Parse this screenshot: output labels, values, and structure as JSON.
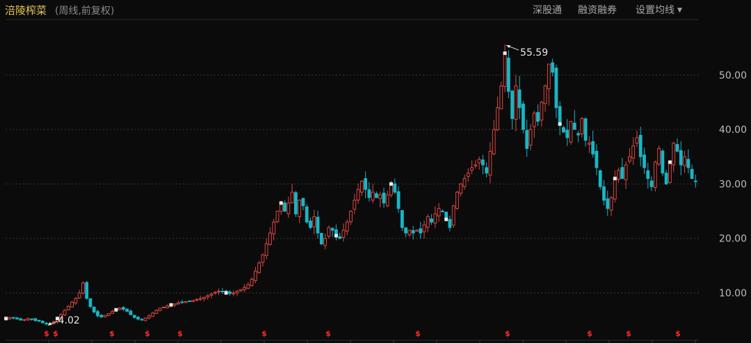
{
  "header": {
    "stock_name": "涪陵榨菜",
    "subtitle": "(周线,前复权)",
    "buttons": [
      "深股通",
      "融资融券",
      "设置均线"
    ]
  },
  "colors": {
    "up": "#e0473f",
    "down": "#18b6c4",
    "dividend": "#ff2a2a",
    "background": "#0b0b0c"
  },
  "chart_data": {
    "type": "candlestick",
    "period": "weekly",
    "adjustment": "forward-adjusted",
    "ylim": [
      4,
      57
    ],
    "y_ticks": [
      {
        "value": 10,
        "label": "10.00"
      },
      {
        "value": 20,
        "label": "20.00"
      },
      {
        "value": 30,
        "label": "30.00"
      },
      {
        "value": 40,
        "label": "40.00"
      },
      {
        "value": 50,
        "label": "50.00"
      }
    ],
    "annotations": [
      {
        "label": "55.59",
        "value": 55.59,
        "type": "high"
      },
      {
        "label": "4.02",
        "value": 4.02,
        "type": "low"
      }
    ],
    "dividend_marker_symbol": "$",
    "close_series": [
      5.3,
      5.5,
      5.4,
      5.2,
      5.0,
      5.1,
      5.3,
      5.2,
      4.9,
      4.8,
      4.5,
      4.3,
      4.4,
      4.7,
      5.3,
      6.0,
      6.8,
      7.5,
      8.3,
      9.0,
      10.0,
      11.8,
      9.0,
      7.5,
      6.5,
      5.8,
      5.6,
      5.9,
      6.2,
      6.6,
      6.9,
      7.2,
      7.0,
      6.6,
      6.0,
      5.5,
      5.2,
      5.0,
      5.4,
      5.8,
      6.3,
      6.8,
      7.2,
      7.4,
      7.6,
      7.8,
      8.0,
      8.2,
      8.3,
      8.4,
      8.5,
      8.6,
      8.8,
      9.0,
      9.2,
      9.5,
      9.8,
      10.1,
      10.3,
      10.2,
      10.0,
      9.9,
      10.0,
      10.3,
      10.6,
      11.0,
      11.5,
      12.5,
      14.0,
      15.5,
      17.0,
      19.0,
      21.0,
      23.0,
      25.0,
      26.5,
      25.0,
      26.5,
      28.5,
      24.5,
      27.0,
      26.0,
      23.0,
      22.0,
      24.0,
      21.0,
      19.0,
      20.0,
      22.0,
      21.5,
      20.5,
      20.0,
      21.5,
      23.0,
      25.0,
      27.0,
      29.0,
      30.5,
      29.0,
      27.5,
      28.5,
      27.5,
      28.0,
      26.5,
      28.0,
      30.0,
      28.5,
      25.5,
      22.0,
      21.0,
      21.5,
      21.0,
      21.5,
      21.0,
      22.5,
      24.0,
      23.0,
      24.5,
      25.5,
      25.0,
      23.5,
      22.0,
      26.0,
      28.5,
      30.0,
      31.0,
      32.0,
      33.0,
      33.5,
      34.5,
      33.5,
      32.0,
      36.0,
      40.0,
      44.0,
      48.0,
      54.0,
      47.0,
      42.0,
      48.0,
      44.0,
      40.0,
      36.5,
      40.0,
      43.0,
      41.5,
      45.0,
      48.0,
      52.0,
      50.5,
      44.0,
      41.0,
      39.5,
      38.5,
      41.5,
      40.0,
      39.0,
      42.0,
      38.0,
      37.5,
      35.5,
      33.0,
      29.5,
      27.0,
      25.5,
      27.5,
      31.0,
      32.5,
      31.0,
      33.5,
      35.0,
      37.0,
      38.5,
      35.0,
      33.0,
      31.0,
      29.5,
      34.0,
      36.5,
      32.0,
      30.0,
      34.0,
      37.5,
      36.0,
      33.5,
      35.0,
      33.0,
      31.0,
      30.5
    ]
  },
  "dividend_labels": [
    "$",
    "$",
    "$",
    "$",
    "$",
    "$",
    "$",
    "$",
    "$",
    "$",
    "$",
    "$"
  ]
}
